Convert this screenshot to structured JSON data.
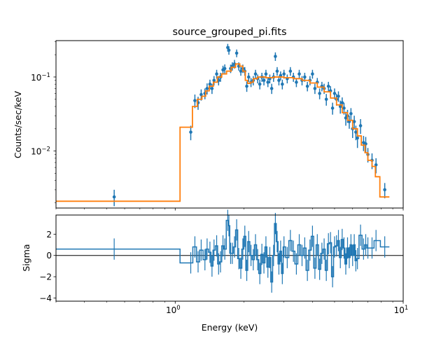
{
  "chart_data": [
    {
      "type": "scatter",
      "title": "source_grouped_pi.fits",
      "xlabel": "",
      "ylabel": "Counts/sec/keV",
      "xscale": "log",
      "yscale": "log",
      "xlim": [
        0.3,
        10
      ],
      "ylim": [
        0.0017,
        0.31
      ],
      "ytick_labels": [
        {
          "value": 0.1,
          "base": "10",
          "exp": "−1"
        },
        {
          "value": 0.01,
          "base": "10",
          "exp": "−2"
        }
      ],
      "colors": {
        "data": "#1f77b4",
        "model": "#ff7f0e"
      },
      "model_steps": [
        [
          0.3,
          0.0021
        ],
        [
          1.05,
          0.021
        ],
        [
          1.19,
          0.04
        ],
        [
          1.25,
          0.05
        ],
        [
          1.31,
          0.055
        ],
        [
          1.36,
          0.065
        ],
        [
          1.41,
          0.075
        ],
        [
          1.47,
          0.085
        ],
        [
          1.53,
          0.1
        ],
        [
          1.6,
          0.11
        ],
        [
          1.68,
          0.12
        ],
        [
          1.76,
          0.135
        ],
        [
          1.84,
          0.15
        ],
        [
          1.92,
          0.14
        ],
        [
          1.98,
          0.12
        ],
        [
          2.03,
          0.09
        ],
        [
          2.08,
          0.082
        ],
        [
          2.14,
          0.085
        ],
        [
          2.2,
          0.095
        ],
        [
          2.3,
          0.1
        ],
        [
          2.5,
          0.098
        ],
        [
          2.7,
          0.1
        ],
        [
          3.0,
          0.098
        ],
        [
          3.3,
          0.095
        ],
        [
          3.6,
          0.09
        ],
        [
          3.9,
          0.083
        ],
        [
          4.2,
          0.073
        ],
        [
          4.5,
          0.063
        ],
        [
          4.8,
          0.052
        ],
        [
          5.1,
          0.042
        ],
        [
          5.4,
          0.033
        ],
        [
          5.7,
          0.026
        ],
        [
          6.0,
          0.02
        ],
        [
          6.3,
          0.016
        ],
        [
          6.55,
          0.012
        ],
        [
          6.8,
          0.0095
        ],
        [
          7.0,
          0.0075
        ],
        [
          7.3,
          0.0062
        ],
        [
          7.55,
          0.0045
        ],
        [
          7.9,
          0.0024
        ],
        [
          8.7,
          0.0024
        ]
      ],
      "points": [
        [
          0.54,
          0.0024,
          0.0006,
          0.6
        ],
        [
          1.17,
          0.018,
          0.004,
          -0.7
        ],
        [
          1.22,
          0.048,
          0.01,
          0.8
        ],
        [
          1.26,
          0.045,
          0.009,
          -0.6
        ],
        [
          1.3,
          0.058,
          0.01,
          0.5
        ],
        [
          1.35,
          0.06,
          0.01,
          -0.4
        ],
        [
          1.38,
          0.07,
          0.012,
          0.6
        ],
        [
          1.42,
          0.08,
          0.012,
          0.3
        ],
        [
          1.45,
          0.07,
          0.011,
          -1.0
        ],
        [
          1.48,
          0.09,
          0.013,
          0.5
        ],
        [
          1.52,
          0.11,
          0.015,
          0.9
        ],
        [
          1.55,
          0.09,
          0.013,
          -0.8
        ],
        [
          1.58,
          0.1,
          0.014,
          -0.6
        ],
        [
          1.62,
          0.125,
          0.017,
          0.9
        ],
        [
          1.65,
          0.13,
          0.018,
          0.6
        ],
        [
          1.7,
          0.25,
          0.03,
          3.3
        ],
        [
          1.72,
          0.23,
          0.03,
          2.8
        ],
        [
          1.75,
          0.13,
          0.017,
          0.2
        ],
        [
          1.78,
          0.14,
          0.018,
          0.2
        ],
        [
          1.82,
          0.15,
          0.02,
          0.8
        ],
        [
          1.86,
          0.21,
          0.025,
          2.4
        ],
        [
          1.9,
          0.14,
          0.018,
          -0.3
        ],
        [
          1.94,
          0.12,
          0.016,
          -1.2
        ],
        [
          1.98,
          0.13,
          0.017,
          0.6
        ],
        [
          2.02,
          0.12,
          0.016,
          1.8
        ],
        [
          2.06,
          0.075,
          0.012,
          -1.4
        ],
        [
          2.1,
          0.1,
          0.014,
          1.3
        ],
        [
          2.15,
          0.085,
          0.012,
          0.0
        ],
        [
          2.2,
          0.09,
          0.013,
          -0.4
        ],
        [
          2.25,
          0.11,
          0.015,
          1.0
        ],
        [
          2.3,
          0.095,
          0.013,
          -0.4
        ],
        [
          2.35,
          0.08,
          0.012,
          -1.7
        ],
        [
          2.4,
          0.1,
          0.014,
          0.1
        ],
        [
          2.45,
          0.09,
          0.013,
          -0.7
        ],
        [
          2.5,
          0.11,
          0.015,
          0.8
        ],
        [
          2.55,
          0.085,
          0.012,
          -1.1
        ],
        [
          2.6,
          0.095,
          0.013,
          -0.2
        ],
        [
          2.65,
          0.07,
          0.011,
          -2.5
        ],
        [
          2.7,
          0.1,
          0.014,
          0.0
        ],
        [
          2.75,
          0.19,
          0.025,
          3.0
        ],
        [
          2.8,
          0.12,
          0.016,
          1.3
        ],
        [
          2.85,
          0.09,
          0.013,
          -0.8
        ],
        [
          2.9,
          0.105,
          0.014,
          0.4
        ],
        [
          2.95,
          0.08,
          0.012,
          -1.7
        ],
        [
          3.0,
          0.11,
          0.015,
          0.8
        ],
        [
          3.1,
          0.095,
          0.013,
          -0.2
        ],
        [
          3.2,
          0.12,
          0.016,
          1.4
        ],
        [
          3.3,
          0.1,
          0.014,
          0.4
        ],
        [
          3.4,
          0.085,
          0.012,
          -0.8
        ],
        [
          3.5,
          0.11,
          0.015,
          1.0
        ],
        [
          3.6,
          0.09,
          0.013,
          0.0
        ],
        [
          3.7,
          0.1,
          0.014,
          0.7
        ],
        [
          3.8,
          0.075,
          0.011,
          -1.4
        ],
        [
          3.9,
          0.09,
          0.013,
          0.5
        ],
        [
          4.0,
          0.11,
          0.015,
          1.8
        ],
        [
          4.1,
          0.07,
          0.011,
          -1.2
        ],
        [
          4.2,
          0.085,
          0.012,
          1.0
        ],
        [
          4.3,
          0.06,
          0.01,
          -1.3
        ],
        [
          4.4,
          0.075,
          0.011,
          0.2
        ],
        [
          4.5,
          0.07,
          0.011,
          0.6
        ],
        [
          4.6,
          0.05,
          0.009,
          -1.4
        ],
        [
          4.7,
          0.075,
          0.011,
          1.1
        ],
        [
          4.8,
          0.065,
          0.01,
          1.2
        ],
        [
          4.9,
          0.038,
          0.007,
          -2.0
        ],
        [
          5.0,
          0.06,
          0.01,
          0.8
        ],
        [
          5.1,
          0.05,
          0.009,
          0.9
        ],
        [
          5.2,
          0.055,
          0.009,
          1.4
        ],
        [
          5.3,
          0.04,
          0.008,
          -0.2
        ],
        [
          5.4,
          0.045,
          0.008,
          1.5
        ],
        [
          5.5,
          0.038,
          0.007,
          0.7
        ],
        [
          5.6,
          0.028,
          0.006,
          -0.8
        ],
        [
          5.7,
          0.03,
          0.006,
          0.7
        ],
        [
          5.8,
          0.025,
          0.005,
          -0.2
        ],
        [
          5.9,
          0.032,
          0.006,
          1.0
        ],
        [
          6.0,
          0.02,
          0.005,
          0.0
        ],
        [
          6.1,
          0.025,
          0.005,
          1.0
        ],
        [
          6.2,
          0.018,
          0.004,
          -0.5
        ],
        [
          6.3,
          0.015,
          0.004,
          -0.3
        ],
        [
          6.5,
          0.022,
          0.005,
          1.9
        ],
        [
          6.7,
          0.013,
          0.003,
          0.6
        ],
        [
          6.85,
          0.0125,
          0.003,
          1.0
        ],
        [
          7.0,
          0.009,
          0.002,
          0.7
        ],
        [
          7.3,
          0.0075,
          0.0018,
          0.7
        ],
        [
          7.6,
          0.0065,
          0.0015,
          1.4
        ],
        [
          8.3,
          0.003,
          0.0007,
          0.8
        ]
      ]
    },
    {
      "type": "scatter",
      "xlabel": "Energy (keV)",
      "ylabel": "Sigma",
      "xscale": "log",
      "xlim": [
        0.3,
        10
      ],
      "ylim": [
        -4.3,
        3.8
      ],
      "yticks": [
        2,
        0,
        -2,
        -4
      ],
      "ytick_labels": [
        "2",
        "0",
        "−2",
        "−4"
      ],
      "xtick_labels": [
        {
          "value": 1,
          "base": "10",
          "exp": "0"
        },
        {
          "value": 10,
          "base": "10",
          "exp": "1"
        }
      ],
      "reference_line": 0
    }
  ]
}
